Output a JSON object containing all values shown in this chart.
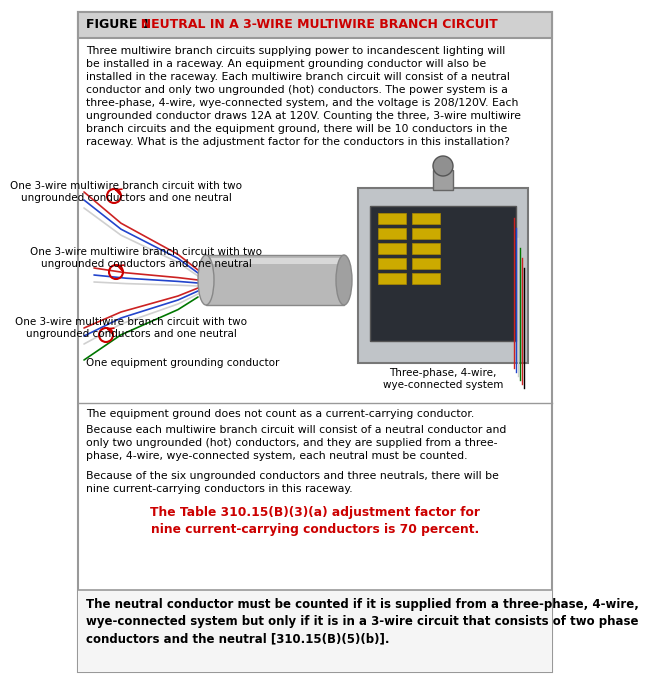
{
  "title_bold": "FIGURE 1",
  "title_rest": "  NEUTRAL IN A 3-WIRE MULTIWIRE BRANCH CIRCUIT",
  "title_bg": "#d0d0d0",
  "title_text_color": "#cc0000",
  "title_fontsize": 9.0,
  "border_color": "#999999",
  "intro_text": "Three multiwire branch circuits supplying power to incandescent lighting will\nbe installed in a raceway. An equipment grounding conductor will also be\ninstalled in the raceway. Each multiwire branch circuit will consist of a neutral\nconductor and only two ungrounded (hot) conductors. The power system is a\nthree-phase, 4-wire, wye-connected system, and the voltage is 208/120V. Each\nungrounded conductor draws 12A at 120V. Counting the three, 3-wire multiwire\nbranch circuits and the equipment ground, there will be 10 conductors in the\nraceway. What is the adjustment factor for the conductors in this installation?",
  "label1": "One 3-wire multiwire branch circuit with two\nungrounded conductors and one neutral",
  "label2": "One 3-wire multiwire branch circuit with two\nungrounded conductors and one neutral",
  "label3": "One 3-wire multiwire branch circuit with two\nungrounded conductors and one neutral",
  "label4": "One equipment grounding conductor",
  "panel_label": "Three-phase, 4-wire,\nwye-connected system",
  "para1": "The equipment ground does not count as a current-carrying conductor.",
  "para2": "Because each multiwire branch circuit will consist of a neutral conductor and\nonly two ungrounded (hot) conductors, and they are supplied from a three-\nphase, 4-wire, wye-connected system, each neutral must be counted.",
  "para3": "Because of the six ungrounded conductors and three neutrals, there will be\nnine current-carrying conductors in this raceway.",
  "highlight_text": "The Table 310.15(B)(3)(a) adjustment factor for\nnine current-carrying conductors is 70 percent.",
  "highlight_color": "#cc0000",
  "footer_text": "The neutral conductor must be counted if it is supplied from a three-phase, 4-wire,\nwye-connected system but only if it is in a 3-wire circuit that consists of two phase\nconductors and the neutral [310.15(B)(5)(b)].",
  "footer_bg": "#f5f5f5",
  "footer_border": "#999999",
  "text_color": "#000000",
  "body_fontsize": 7.8,
  "label_fontsize": 7.5,
  "highlight_fontsize": 8.8,
  "footer_fontsize": 8.5
}
